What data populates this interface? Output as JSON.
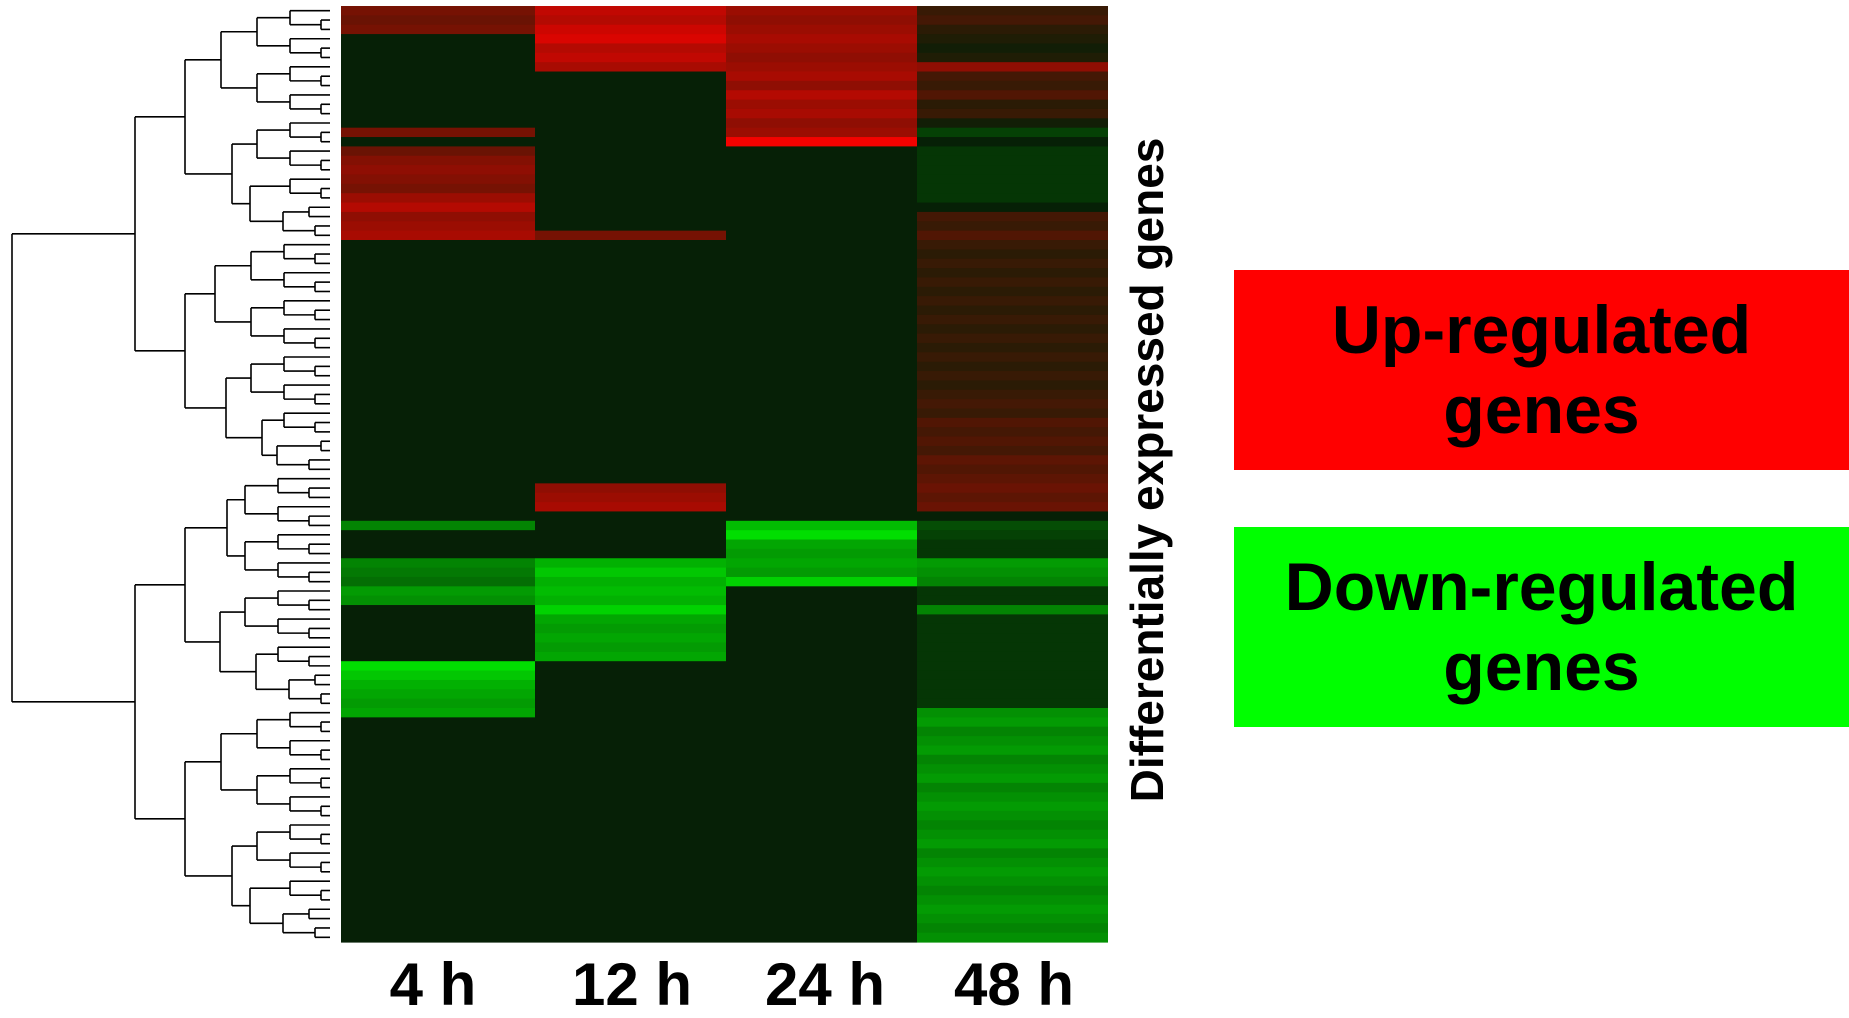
{
  "chart_data": {
    "type": "heatmap",
    "title": "",
    "xlabel": "",
    "ylabel": "Differentially expressed genes",
    "columns": [
      "4 h",
      "12 h",
      "24 h",
      "48 h"
    ],
    "row_count": 100,
    "dendrogram": "left",
    "color_scale": {
      "up": "#ff0000",
      "neutral": "#062006",
      "down": "#00ff00"
    },
    "legend": [
      {
        "label": "Up-regulated\ngenes",
        "color": "#ff0000"
      },
      {
        "label": "Down-regulated\ngenes",
        "color": "#00ff00"
      }
    ],
    "values": [
      [
        0.45,
        0.75,
        0.6,
        0.2
      ],
      [
        0.4,
        0.7,
        0.55,
        0.25
      ],
      [
        0.45,
        0.8,
        0.6,
        0.15
      ],
      [
        0.0,
        0.85,
        0.65,
        0.1
      ],
      [
        0.0,
        0.7,
        0.6,
        0.05
      ],
      [
        0.0,
        0.75,
        0.55,
        0.1
      ],
      [
        0.0,
        0.65,
        0.6,
        0.55
      ],
      [
        0.0,
        0.0,
        0.65,
        0.25
      ],
      [
        0.0,
        0.0,
        0.55,
        0.2
      ],
      [
        0.0,
        0.0,
        0.7,
        0.3
      ],
      [
        0.0,
        0.0,
        0.6,
        0.15
      ],
      [
        0.0,
        0.0,
        0.65,
        0.2
      ],
      [
        0.0,
        0.0,
        0.55,
        0.05
      ],
      [
        0.45,
        0.0,
        0.6,
        -0.15
      ],
      [
        0.0,
        0.0,
        0.95,
        0.0
      ],
      [
        0.4,
        0.0,
        0.0,
        -0.1
      ],
      [
        0.5,
        0.0,
        0.0,
        -0.1
      ],
      [
        0.55,
        0.0,
        0.0,
        -0.1
      ],
      [
        0.5,
        0.0,
        0.0,
        -0.1
      ],
      [
        0.45,
        0.0,
        0.0,
        -0.1
      ],
      [
        0.6,
        0.0,
        0.0,
        -0.1
      ],
      [
        0.7,
        0.0,
        0.0,
        0.0
      ],
      [
        0.55,
        0.0,
        0.0,
        0.25
      ],
      [
        0.6,
        0.0,
        0.0,
        0.2
      ],
      [
        0.65,
        0.45,
        0.0,
        0.3
      ],
      [
        0.0,
        0.0,
        0.0,
        0.2
      ],
      [
        0.0,
        0.0,
        0.0,
        0.15
      ],
      [
        0.0,
        0.0,
        0.0,
        0.2
      ],
      [
        0.0,
        0.0,
        0.0,
        0.15
      ],
      [
        0.0,
        0.0,
        0.0,
        0.2
      ],
      [
        0.0,
        0.0,
        0.0,
        0.15
      ],
      [
        0.0,
        0.0,
        0.0,
        0.2
      ],
      [
        0.0,
        0.0,
        0.0,
        0.15
      ],
      [
        0.0,
        0.0,
        0.0,
        0.2
      ],
      [
        0.0,
        0.0,
        0.0,
        0.15
      ],
      [
        0.0,
        0.0,
        0.0,
        0.2
      ],
      [
        0.0,
        0.0,
        0.0,
        0.15
      ],
      [
        0.0,
        0.0,
        0.0,
        0.2
      ],
      [
        0.0,
        0.0,
        0.0,
        0.15
      ],
      [
        0.0,
        0.0,
        0.0,
        0.2
      ],
      [
        0.0,
        0.0,
        0.0,
        0.15
      ],
      [
        0.0,
        0.0,
        0.0,
        0.2
      ],
      [
        0.0,
        0.0,
        0.0,
        0.25
      ],
      [
        0.0,
        0.0,
        0.0,
        0.2
      ],
      [
        0.0,
        0.0,
        0.0,
        0.3
      ],
      [
        0.0,
        0.0,
        0.0,
        0.25
      ],
      [
        0.0,
        0.0,
        0.0,
        0.3
      ],
      [
        0.0,
        0.0,
        0.0,
        0.25
      ],
      [
        0.0,
        0.0,
        0.0,
        0.35
      ],
      [
        0.0,
        0.0,
        0.0,
        0.3
      ],
      [
        0.0,
        0.0,
        0.0,
        0.35
      ],
      [
        0.0,
        0.55,
        0.0,
        0.4
      ],
      [
        0.0,
        0.6,
        0.0,
        0.35
      ],
      [
        0.0,
        0.65,
        0.0,
        0.4
      ],
      [
        0.0,
        0.0,
        0.0,
        0.0
      ],
      [
        -0.45,
        0.0,
        -0.7,
        -0.2
      ],
      [
        0.0,
        0.0,
        -0.85,
        -0.15
      ],
      [
        0.0,
        0.0,
        -0.6,
        -0.1
      ],
      [
        0.0,
        0.0,
        -0.55,
        -0.1
      ],
      [
        -0.45,
        -0.65,
        -0.6,
        -0.55
      ],
      [
        -0.4,
        -0.75,
        -0.55,
        -0.5
      ],
      [
        -0.35,
        -0.65,
        -0.8,
        -0.45
      ],
      [
        -0.55,
        -0.7,
        0.0,
        -0.1
      ],
      [
        -0.5,
        -0.65,
        0.0,
        -0.1
      ],
      [
        0.0,
        -0.8,
        0.0,
        -0.45
      ],
      [
        0.0,
        -0.6,
        0.0,
        -0.1
      ],
      [
        0.0,
        -0.55,
        0.0,
        -0.1
      ],
      [
        0.0,
        -0.6,
        0.0,
        -0.1
      ],
      [
        0.0,
        -0.55,
        0.0,
        -0.1
      ],
      [
        0.0,
        -0.6,
        0.0,
        -0.1
      ],
      [
        -0.85,
        0.0,
        0.0,
        -0.1
      ],
      [
        -0.75,
        0.0,
        0.0,
        -0.1
      ],
      [
        -0.65,
        0.0,
        0.0,
        -0.1
      ],
      [
        -0.6,
        0.0,
        0.0,
        -0.1
      ],
      [
        -0.55,
        0.0,
        0.0,
        -0.1
      ],
      [
        -0.6,
        0.0,
        0.0,
        -0.5
      ],
      [
        0.0,
        0.0,
        0.0,
        -0.55
      ],
      [
        0.0,
        0.0,
        0.0,
        -0.45
      ],
      [
        0.0,
        0.0,
        0.0,
        -0.5
      ],
      [
        0.0,
        0.0,
        0.0,
        -0.55
      ],
      [
        0.0,
        0.0,
        0.0,
        -0.45
      ],
      [
        0.0,
        0.0,
        0.0,
        -0.5
      ],
      [
        0.0,
        0.0,
        0.0,
        -0.55
      ],
      [
        0.0,
        0.0,
        0.0,
        -0.45
      ],
      [
        0.0,
        0.0,
        0.0,
        -0.5
      ],
      [
        0.0,
        0.0,
        0.0,
        -0.55
      ],
      [
        0.0,
        0.0,
        0.0,
        -0.5
      ],
      [
        0.0,
        0.0,
        0.0,
        -0.45
      ],
      [
        0.0,
        0.0,
        0.0,
        -0.5
      ],
      [
        0.0,
        0.0,
        0.0,
        -0.55
      ],
      [
        0.0,
        0.0,
        0.0,
        -0.45
      ],
      [
        0.0,
        0.0,
        0.0,
        -0.5
      ],
      [
        0.0,
        0.0,
        0.0,
        -0.55
      ],
      [
        0.0,
        0.0,
        0.0,
        -0.5
      ],
      [
        0.0,
        0.0,
        0.0,
        -0.45
      ],
      [
        0.0,
        0.0,
        0.0,
        -0.5
      ],
      [
        0.0,
        0.0,
        0.0,
        -0.55
      ],
      [
        0.0,
        0.0,
        0.0,
        -0.5
      ],
      [
        0.0,
        0.0,
        0.0,
        -0.45
      ],
      [
        0.0,
        0.0,
        0.0,
        -0.5
      ]
    ]
  }
}
